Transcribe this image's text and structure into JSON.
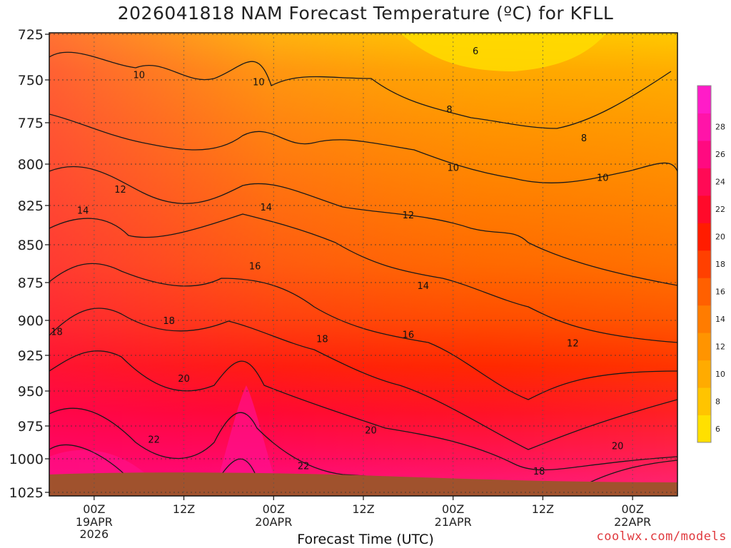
{
  "title": "2026041818 NAM Forecast Temperature (ºC) for KFLL",
  "credit": "coolwx.com/models",
  "chart_data": {
    "type": "heatmap",
    "title": "2026041818 NAM Forecast Temperature (ºC) for KFLL",
    "xlabel": "Forecast Time (UTC)",
    "ylabel": "",
    "y_axis": {
      "ticks": [
        "725",
        "750",
        "775",
        "800",
        "825",
        "850",
        "875",
        "900",
        "925",
        "950",
        "975",
        "1000",
        "1025"
      ],
      "reversed": true
    },
    "x_axis": {
      "ticks": [
        {
          "label": "00Z",
          "sub": [
            "19APR",
            "2026"
          ],
          "hours": 6
        },
        {
          "label": "12Z",
          "sub": [],
          "hours": 18
        },
        {
          "label": "00Z",
          "sub": [
            "20APR"
          ],
          "hours": 30
        },
        {
          "label": "12Z",
          "sub": [],
          "hours": 42
        },
        {
          "label": "00Z",
          "sub": [
            "21APR"
          ],
          "hours": 54
        },
        {
          "label": "12Z",
          "sub": [],
          "hours": 66
        },
        {
          "label": "00Z",
          "sub": [
            "22APR"
          ],
          "hours": 78
        }
      ],
      "range": [
        0,
        84
      ]
    },
    "colorbar": {
      "labels": [
        "6",
        "8",
        "10",
        "12",
        "14",
        "16",
        "18",
        "20",
        "22",
        "24",
        "26",
        "28"
      ],
      "colors": [
        "#ffe000",
        "#ffc400",
        "#ffab00",
        "#ff9400",
        "#ff7c00",
        "#ff6000",
        "#ff4000",
        "#ff1c00",
        "#ff0a2a",
        "#ff0a55",
        "#ff0a80",
        "#ff14a8",
        "#ff1cc8"
      ]
    },
    "contour_labels": [
      {
        "text": "6",
        "hours": 57,
        "p": 734
      },
      {
        "text": "8",
        "hours": 53.5,
        "p": 767
      },
      {
        "text": "8",
        "hours": 71.5,
        "p": 784
      },
      {
        "text": "10",
        "hours": 12,
        "p": 747
      },
      {
        "text": "10",
        "hours": 28,
        "p": 751
      },
      {
        "text": "10",
        "hours": 54,
        "p": 802
      },
      {
        "text": "10",
        "hours": 74,
        "p": 808
      },
      {
        "text": "12",
        "hours": 9.5,
        "p": 815
      },
      {
        "text": "12",
        "hours": 48,
        "p": 831
      },
      {
        "text": "12",
        "hours": 70,
        "p": 916
      },
      {
        "text": "14",
        "hours": 4.5,
        "p": 828
      },
      {
        "text": "14",
        "hours": 29,
        "p": 826
      },
      {
        "text": "14",
        "hours": 50,
        "p": 877
      },
      {
        "text": "16",
        "hours": 27.5,
        "p": 864
      },
      {
        "text": "16",
        "hours": 48,
        "p": 910
      },
      {
        "text": "18",
        "hours": 1,
        "p": 908
      },
      {
        "text": "18",
        "hours": 16,
        "p": 900
      },
      {
        "text": "18",
        "hours": 36.5,
        "p": 913
      },
      {
        "text": "18",
        "hours": 65.5,
        "p": 1009
      },
      {
        "text": "20",
        "hours": 18,
        "p": 941
      },
      {
        "text": "20",
        "hours": 43,
        "p": 978
      },
      {
        "text": "20",
        "hours": 76,
        "p": 990
      },
      {
        "text": "22",
        "hours": 14,
        "p": 985
      },
      {
        "text": "22",
        "hours": 34,
        "p": 1005
      }
    ]
  }
}
